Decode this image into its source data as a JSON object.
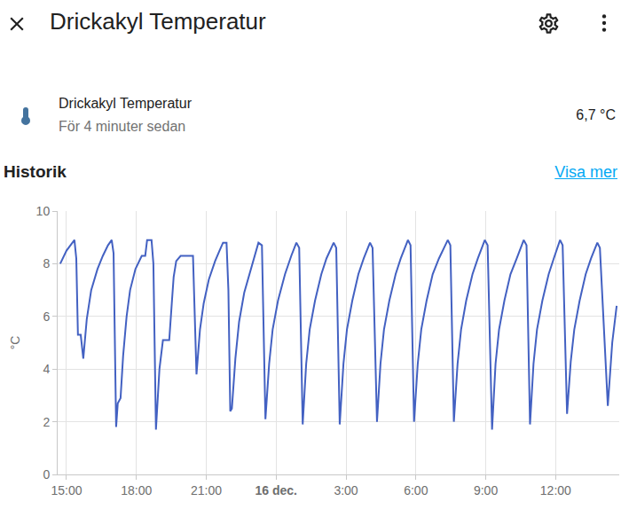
{
  "header": {
    "title": "Drickakyl Temperatur"
  },
  "entity": {
    "name": "Drickakyl Temperatur",
    "last_changed": "För 4 minuter sedan",
    "state": "6,7 °C"
  },
  "section": {
    "title": "Historik",
    "link": "Visa mer"
  },
  "chart_data": {
    "type": "line",
    "y_label": "°C",
    "color": "#4361c2",
    "line_style": "solid",
    "grid": true,
    "x": [
      14.73,
      15.0,
      15.34,
      15.42,
      15.49,
      15.61,
      15.72,
      15.87,
      16.06,
      16.33,
      16.56,
      16.78,
      16.94,
      17.02,
      17.13,
      17.2,
      17.32,
      17.43,
      17.58,
      17.73,
      17.96,
      18.23,
      18.38,
      18.46,
      18.65,
      18.73,
      18.84,
      18.99,
      19.14,
      19.41,
      19.52,
      19.6,
      19.71,
      19.9,
      20.43,
      20.5,
      20.58,
      20.73,
      20.89,
      21.11,
      21.38,
      21.57,
      21.72,
      21.87,
      21.95,
      22.03,
      22.1,
      22.25,
      22.41,
      22.63,
      22.97,
      23.24,
      23.39,
      23.54,
      23.7,
      23.85,
      24.08,
      24.38,
      24.65,
      24.87,
      24.99,
      25.14,
      25.29,
      25.44,
      25.67,
      25.94,
      26.16,
      26.47,
      26.58,
      26.73,
      26.89,
      27.04,
      27.27,
      27.53,
      27.76,
      28.03,
      28.14,
      28.33,
      28.48,
      28.63,
      28.86,
      29.13,
      29.35,
      29.66,
      29.77,
      29.92,
      30.08,
      30.23,
      30.46,
      30.72,
      30.99,
      31.37,
      31.48,
      31.63,
      31.79,
      31.94,
      32.16,
      32.43,
      32.66,
      32.96,
      33.08,
      33.27,
      33.42,
      33.57,
      33.8,
      34.06,
      34.33,
      34.63,
      34.75,
      34.9,
      35.05,
      35.2,
      35.43,
      35.7,
      35.92,
      36.19,
      36.3,
      36.49,
      36.65,
      36.8,
      37.03,
      37.29,
      37.52,
      37.79,
      37.9,
      38.24,
      38.43,
      38.62
    ],
    "values": [
      8.0,
      8.5,
      8.9,
      8.2,
      5.3,
      5.3,
      4.4,
      5.9,
      7.0,
      7.8,
      8.3,
      8.7,
      8.9,
      8.4,
      1.8,
      2.7,
      2.9,
      4.5,
      6.0,
      7.0,
      7.8,
      8.3,
      8.3,
      8.9,
      8.9,
      8.0,
      1.7,
      4.0,
      5.1,
      5.1,
      6.5,
      7.5,
      8.1,
      8.3,
      8.3,
      6.0,
      3.8,
      5.5,
      6.5,
      7.4,
      8.1,
      8.5,
      8.8,
      8.8,
      7.0,
      2.4,
      2.5,
      4.4,
      5.8,
      6.9,
      8.0,
      8.8,
      8.7,
      2.1,
      4.2,
      5.5,
      6.6,
      7.6,
      8.3,
      8.8,
      8.6,
      1.9,
      4.2,
      5.5,
      6.6,
      7.6,
      8.2,
      8.8,
      8.6,
      1.9,
      4.2,
      5.5,
      6.6,
      7.6,
      8.2,
      8.8,
      8.6,
      2.0,
      4.2,
      5.5,
      6.6,
      7.6,
      8.2,
      8.9,
      8.7,
      2.0,
      4.2,
      5.5,
      6.6,
      7.6,
      8.2,
      8.9,
      8.7,
      2.0,
      4.2,
      5.5,
      6.6,
      7.6,
      8.2,
      8.9,
      8.7,
      1.7,
      4.2,
      5.5,
      6.6,
      7.6,
      8.2,
      8.9,
      8.7,
      1.9,
      4.2,
      5.5,
      6.6,
      7.6,
      8.2,
      8.9,
      8.7,
      2.3,
      4.3,
      5.5,
      6.6,
      7.6,
      8.2,
      8.8,
      8.6,
      2.6,
      5.0,
      6.4
    ],
    "xlim": [
      14.62,
      38.73
    ],
    "xticks": [
      {
        "value": 15,
        "label": "15:00"
      },
      {
        "value": 18,
        "label": "18:00"
      },
      {
        "value": 21,
        "label": "21:00"
      },
      {
        "value": 24,
        "label": "16 dec."
      },
      {
        "value": 27,
        "label": "3:00"
      },
      {
        "value": 30,
        "label": "6:00"
      },
      {
        "value": 33,
        "label": "9:00"
      },
      {
        "value": 36,
        "label": "12:00"
      }
    ],
    "ylim": [
      0,
      10
    ],
    "yticks": [
      0,
      2,
      4,
      6,
      8,
      10
    ]
  }
}
